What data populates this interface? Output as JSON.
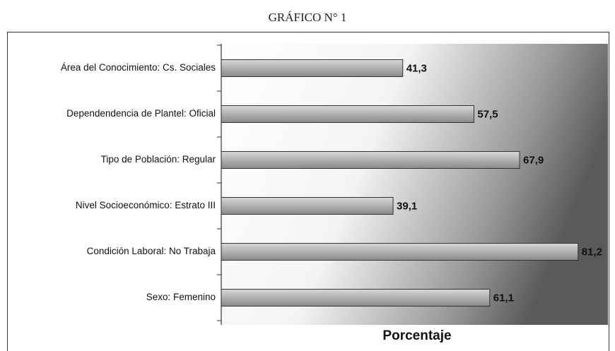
{
  "chart_data": {
    "type": "bar",
    "orientation": "horizontal",
    "title": "GRÁFICO N° 1",
    "x_label": "Porcentaje",
    "categories": [
      "Área del Conocimiento: Cs. Sociales",
      "Dependendencia de Plantel: Oficial",
      "Tipo de Población: Regular",
      "Nivel Socioeconómico: Estrato III",
      "Condición Laboral: No Trabaja",
      "Sexo: Femenino"
    ],
    "values": [
      41.3,
      57.5,
      67.9,
      39.1,
      81.2,
      61.1
    ],
    "value_labels": [
      "41,3",
      "57,5",
      "67,9",
      "39,1",
      "81,2",
      "61,1"
    ],
    "color": "#a8a8a8",
    "xlim": [
      0,
      88
    ]
  }
}
